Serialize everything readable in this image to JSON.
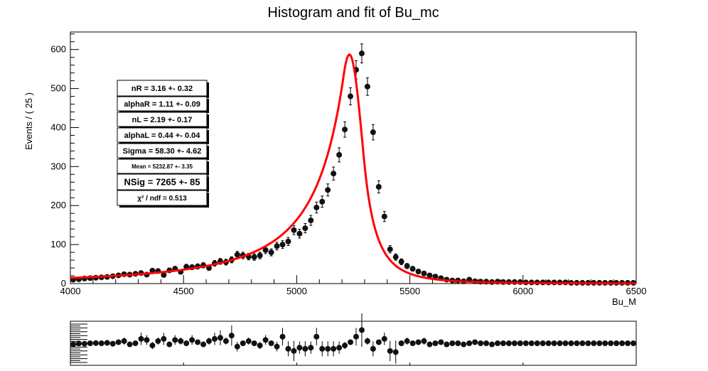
{
  "chart_data": [
    {
      "type": "scatter",
      "title": "Histogram and fit of Bu_mc",
      "xlabel": "Bu_M",
      "ylabel": "Events / ( 25 )",
      "xlim": [
        4000,
        6500
      ],
      "ylim": [
        0,
        645
      ],
      "x_ticks": [
        "4000",
        "4500",
        "5000",
        "5500",
        "6000",
        "6500"
      ],
      "y_ticks": [
        "0",
        "100",
        "200",
        "300",
        "400",
        "500",
        "600"
      ],
      "grid": false,
      "series": [
        {
          "kind": "data_points_with_errors",
          "color": "#000000",
          "x": [
            4012.5,
            4037.5,
            4062.5,
            4087.5,
            4112.5,
            4137.5,
            4162.5,
            4187.5,
            4212.5,
            4237.5,
            4262.5,
            4287.5,
            4312.5,
            4337.5,
            4362.5,
            4387.5,
            4412.5,
            4437.5,
            4462.5,
            4487.5,
            4512.5,
            4537.5,
            4562.5,
            4587.5,
            4612.5,
            4637.5,
            4662.5,
            4687.5,
            4712.5,
            4737.5,
            4762.5,
            4787.5,
            4812.5,
            4837.5,
            4862.5,
            4887.5,
            4912.5,
            4937.5,
            4962.5,
            4987.5,
            5012.5,
            5037.5,
            5062.5,
            5087.5,
            5112.5,
            5137.5,
            5162.5,
            5187.5,
            5212.5,
            5237.5,
            5262.5,
            5287.5,
            5312.5,
            5337.5,
            5362.5,
            5387.5,
            5412.5,
            5437.5,
            5462.5,
            5487.5,
            5512.5,
            5537.5,
            5562.5,
            5587.5,
            5612.5,
            5637.5,
            5662.5,
            5687.5,
            5712.5,
            5737.5,
            5762.5,
            5787.5,
            5812.5,
            5837.5,
            5862.5,
            5887.5,
            5912.5,
            5937.5,
            5962.5,
            5987.5,
            6012.5,
            6037.5,
            6062.5,
            6087.5,
            6112.5,
            6137.5,
            6162.5,
            6187.5,
            6212.5,
            6237.5,
            6262.5,
            6287.5,
            6312.5,
            6337.5,
            6362.5,
            6387.5,
            6412.5,
            6437.5,
            6462.5,
            6487.5
          ],
          "y": [
            10,
            11,
            13,
            14,
            15,
            16,
            17,
            19,
            21,
            24,
            23,
            25,
            27,
            23,
            33,
            32,
            22,
            34,
            38,
            30,
            43,
            42,
            44,
            47,
            40,
            52,
            57,
            55,
            61,
            74,
            72,
            69,
            68,
            72,
            86,
            80,
            96,
            100,
            108,
            137,
            128,
            142,
            162,
            195,
            210,
            240,
            282,
            330,
            395,
            480,
            548,
            590,
            505,
            388,
            248,
            172,
            88,
            68,
            56,
            45,
            38,
            31,
            26,
            21,
            18,
            14,
            10,
            8,
            8,
            6,
            10,
            6,
            5,
            5,
            4,
            5,
            4,
            4,
            4,
            4,
            3,
            3,
            3,
            3,
            3,
            3,
            3,
            3,
            2,
            2,
            2,
            2,
            2,
            2,
            2,
            2,
            2,
            2,
            2,
            2
          ]
        },
        {
          "kind": "fit_curve",
          "name": "fit",
          "color": "#ff0000",
          "model": "double_sided_crystal_ball",
          "mean": 5232.87,
          "sigma": 58.3,
          "alphaL": 0.44,
          "nL": 2.19,
          "alphaR": 1.11,
          "nR": 3.16,
          "NSig": 7265
        }
      ],
      "annotations": [
        "nR = 3.16 +- 0.32",
        "alphaR = 1.11 +- 0.09",
        "nL = 2.19 +- 0.17",
        "alphaL = 0.44 +- 0.04",
        "Sigma = 58.30 +- 4.62",
        "Mean = 5232.87 +- 3.35",
        "NSig = 7265 +- 85",
        "χ² / ndf = 0.513"
      ]
    },
    {
      "type": "scatter",
      "title": "",
      "xlim": [
        4000,
        6500
      ],
      "series": [
        {
          "kind": "pull_points_with_errors",
          "color": "#000000",
          "x": [
            4012.5,
            4037.5,
            4062.5,
            4087.5,
            4112.5,
            4137.5,
            4162.5,
            4187.5,
            4212.5,
            4237.5,
            4262.5,
            4287.5,
            4312.5,
            4337.5,
            4362.5,
            4387.5,
            4412.5,
            4437.5,
            4462.5,
            4487.5,
            4512.5,
            4537.5,
            4562.5,
            4587.5,
            4612.5,
            4637.5,
            4662.5,
            4687.5,
            4712.5,
            4737.5,
            4762.5,
            4787.5,
            4812.5,
            4837.5,
            4862.5,
            4887.5,
            4912.5,
            4937.5,
            4962.5,
            4987.5,
            5012.5,
            5037.5,
            5062.5,
            5087.5,
            5112.5,
            5137.5,
            5162.5,
            5187.5,
            5212.5,
            5237.5,
            5262.5,
            5287.5,
            5312.5,
            5337.5,
            5362.5,
            5387.5,
            5412.5,
            5437.5,
            5462.5,
            5487.5,
            5512.5,
            5537.5,
            5562.5,
            5587.5,
            5612.5,
            5637.5,
            5662.5,
            5687.5,
            5712.5,
            5737.5,
            5762.5,
            5787.5,
            5812.5,
            5837.5,
            5862.5,
            5887.5,
            5912.5,
            5937.5,
            5962.5,
            5987.5,
            6012.5,
            6037.5,
            6062.5,
            6087.5,
            6112.5,
            6137.5,
            6162.5,
            6187.5,
            6212.5,
            6237.5,
            6262.5,
            6287.5,
            6312.5,
            6337.5,
            6362.5,
            6387.5,
            6412.5,
            6437.5,
            6462.5,
            6487.5
          ],
          "y": [
            0.95,
            0.99,
            0.98,
            1.0,
            1.01,
            1.0,
            1.02,
            0.98,
            1.05,
            1.1,
            0.95,
            1.0,
            1.2,
            1.15,
            0.9,
            1.1,
            1.2,
            0.95,
            1.15,
            1.1,
            1.0,
            1.15,
            1.05,
            0.95,
            1.1,
            1.2,
            1.25,
            1.1,
            1.35,
            0.85,
            1.0,
            1.1,
            1.0,
            0.9,
            1.15,
            1.0,
            0.85,
            1.3,
            0.75,
            0.65,
            0.8,
            0.75,
            0.8,
            1.3,
            0.75,
            0.75,
            0.75,
            0.8,
            0.9,
            1.05,
            1.3,
            1.6,
            1.1,
            0.75,
            1.05,
            1.2,
            0.65,
            0.6,
            1.0,
            1.1,
            1.0,
            1.05,
            1.1,
            0.95,
            1.0,
            1.05,
            0.95,
            1.0,
            1.0,
            0.95,
            1.0,
            1.05,
            1.0,
            1.0,
            0.95,
            1.0,
            1.0,
            1.0,
            1.0,
            1.0,
            1.0,
            1.0,
            1.0,
            1.0,
            1.0,
            1.0,
            1.0,
            1.0,
            1.0,
            1.0,
            1.0,
            1.0,
            1.0,
            1.0,
            1.0,
            1.0,
            1.0,
            1.0,
            1.0,
            1.0
          ]
        }
      ]
    }
  ]
}
